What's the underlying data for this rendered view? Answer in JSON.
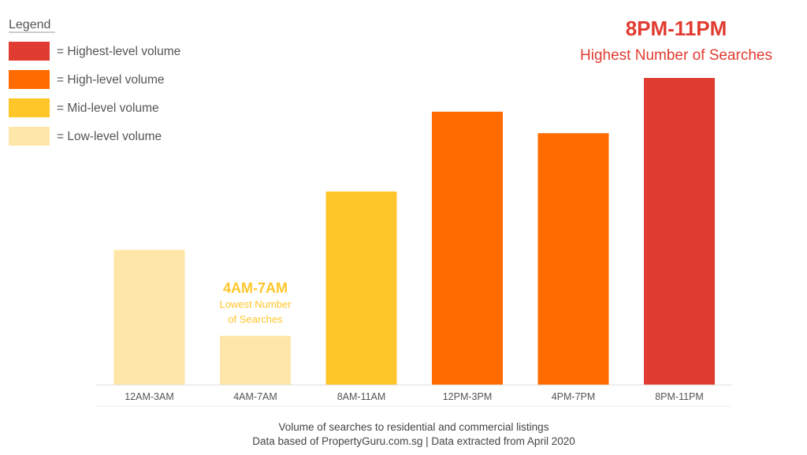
{
  "legend": {
    "title": "Legend",
    "items": [
      {
        "label": "= Highest-level volume",
        "color": "#e03c31"
      },
      {
        "label": "= High-level volume",
        "color": "#ff6b00"
      },
      {
        "label": "= Mid-level volume",
        "color": "#ffc629"
      },
      {
        "label": "= Low-level volume",
        "color": "#fee6a8"
      }
    ]
  },
  "chart_data": {
    "type": "bar",
    "categories": [
      "12AM-3AM",
      "4AM-7AM",
      "8AM-11AM",
      "12PM-3PM",
      "4PM-7PM",
      "8PM-11PM"
    ],
    "values": [
      44,
      16,
      63,
      89,
      82,
      100
    ],
    "colors": [
      "#fee6a8",
      "#fee6a8",
      "#ffc629",
      "#ff6b00",
      "#ff6b00",
      "#e03c31"
    ],
    "grid": false
  },
  "annotations": {
    "highest": {
      "title": "8PM-11PM",
      "subtitle": "Highest Number of Searches",
      "color": "#e03c31"
    },
    "lowest": {
      "title": "4AM-7AM",
      "subtitle_line1": "Lowest Number",
      "subtitle_line2": "of Searches",
      "color": "#ffc629"
    }
  },
  "footer": {
    "line1": "Volume of searches to residential and commercial listings",
    "line2": "Data based of PropertyGuru.com.sg | Data extracted from April 2020"
  }
}
